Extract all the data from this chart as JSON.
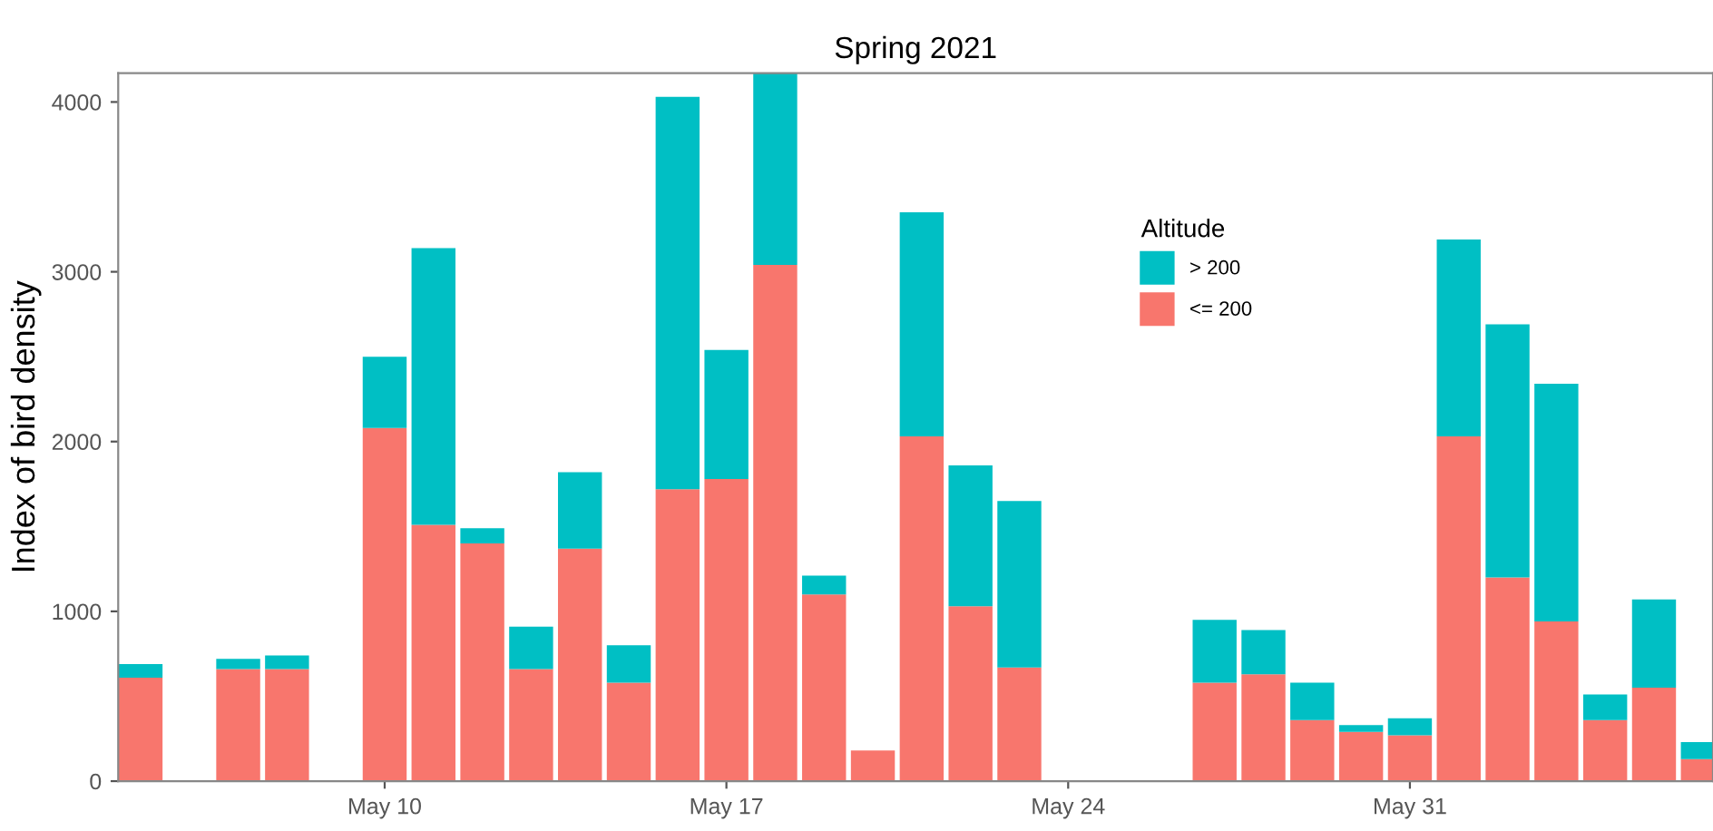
{
  "chart_data": {
    "type": "bar",
    "stacked": true,
    "title": "Spring 2021",
    "ylabel": "Index of bird density",
    "legend_title": "Altitude",
    "legend": "top right",
    "grid": false,
    "x": [
      "2021-05-05",
      "2021-05-07",
      "2021-05-08",
      "2021-05-10",
      "2021-05-11",
      "2021-05-12",
      "2021-05-13",
      "2021-05-14",
      "2021-05-15",
      "2021-05-16",
      "2021-05-17",
      "2021-05-18",
      "2021-05-19",
      "2021-05-20",
      "2021-05-21",
      "2021-05-22",
      "2021-05-23",
      "2021-05-27",
      "2021-05-28",
      "2021-05-29",
      "2021-05-30",
      "2021-05-31",
      "2021-06-01",
      "2021-06-02",
      "2021-06-03",
      "2021-06-04",
      "2021-06-05",
      "2021-06-06"
    ],
    "series": [
      {
        "name": "<= 200",
        "color": "#f8766d",
        "values": [
          610,
          660,
          660,
          2080,
          1510,
          1400,
          660,
          1370,
          580,
          1720,
          1780,
          3040,
          1100,
          180,
          2030,
          1030,
          670,
          580,
          630,
          360,
          290,
          270,
          2030,
          1200,
          940,
          360,
          550,
          130
        ]
      },
      {
        "name": "> 200",
        "color": "#00bfc4",
        "values": [
          80,
          60,
          80,
          420,
          1630,
          90,
          250,
          450,
          220,
          2310,
          760,
          1130,
          110,
          0,
          1320,
          830,
          980,
          370,
          260,
          220,
          40,
          100,
          1160,
          1490,
          1400,
          150,
          520,
          100
        ]
      }
    ],
    "xlim": [
      "2021-05-04T13:00",
      "2021-06-06T05:00"
    ],
    "xticks": [
      {
        "value": "2021-05-10",
        "label": "May 10"
      },
      {
        "value": "2021-05-17",
        "label": "May 17"
      },
      {
        "value": "2021-05-24",
        "label": "May 24"
      },
      {
        "value": "2021-05-31",
        "label": "May 31"
      }
    ],
    "ylim": [
      0,
      4170
    ],
    "yticks": [
      0,
      1000,
      2000,
      3000,
      4000
    ]
  }
}
